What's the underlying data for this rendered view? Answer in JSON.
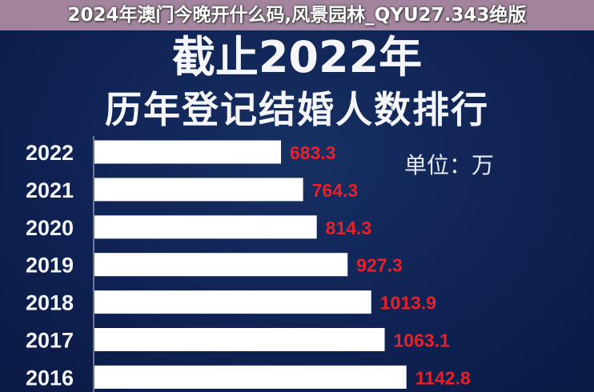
{
  "chart_data": {
    "type": "bar",
    "orientation": "horizontal",
    "title": "截止2022年",
    "subtitle": "历年登记结婚人数排行",
    "unit_label": "单位：万",
    "categories": [
      "2022",
      "2021",
      "2020",
      "2019",
      "2018",
      "2017",
      "2016"
    ],
    "values": [
      683.3,
      764.3,
      814.3,
      927.3,
      1013.9,
      1063.1,
      1142.8
    ],
    "value_labels": [
      "683.3",
      "764.3",
      "814.3",
      "927.3",
      "1013.9",
      "1063.1",
      "1142.8"
    ],
    "xlim": [
      0,
      1200
    ],
    "grid": false,
    "colors": {
      "bar": "#ffffff",
      "value_label": "#e8202a",
      "background": "#0f2152"
    }
  },
  "overlay": {
    "caption": "2024年澳门今晚开什么码,风景园林_QYU27.343绝版"
  }
}
